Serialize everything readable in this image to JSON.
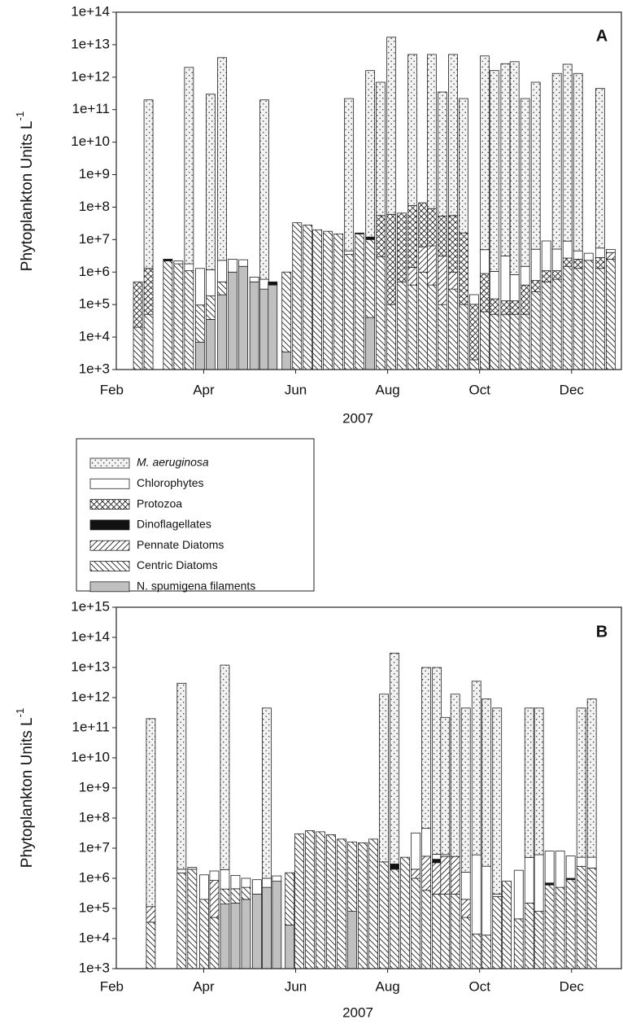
{
  "chart_data": [
    {
      "type": "bar",
      "annotation": "A",
      "y_label": "Phytoplankton Units L",
      "y_label_superscript": "-1",
      "x_label": "2007",
      "log_y": true,
      "stacked": true,
      "xlim": [
        2.1,
        13.1
      ],
      "xticks": [
        {
          "value": 2,
          "label": "Feb"
        },
        {
          "value": 4,
          "label": "Apr"
        },
        {
          "value": 6,
          "label": "Jun"
        },
        {
          "value": 8,
          "label": "Aug"
        },
        {
          "value": 10,
          "label": "Oct"
        },
        {
          "value": 12,
          "label": "Dec"
        }
      ],
      "ylim": [
        1000.0,
        100000000000000.0
      ],
      "yticks": [
        {
          "value": 1000.0,
          "label": "1e+3"
        },
        {
          "value": 10000.0,
          "label": "1e+4"
        },
        {
          "value": 100000.0,
          "label": "1e+5"
        },
        {
          "value": 1000000.0,
          "label": "1e+6"
        },
        {
          "value": 10000000.0,
          "label": "1e+7"
        },
        {
          "value": 100000000.0,
          "label": "1e+8"
        },
        {
          "value": 1000000000.0,
          "label": "1e+9"
        },
        {
          "value": 10000000000.0,
          "label": "1e+10"
        },
        {
          "value": 100000000000.0,
          "label": "1e+11"
        },
        {
          "value": 1000000000000.0,
          "label": "1e+12"
        },
        {
          "value": 10000000000000.0,
          "label": "1e+13"
        },
        {
          "value": 100000000000000.0,
          "label": "1e+14"
        }
      ],
      "x": [
        2.57,
        2.8,
        3.22,
        3.45,
        3.68,
        3.92,
        4.15,
        4.4,
        4.63,
        4.86,
        5.1,
        5.32,
        5.5,
        5.8,
        6.03,
        6.26,
        6.47,
        6.7,
        6.93,
        7.16,
        7.39,
        7.62,
        7.85,
        8.08,
        8.31,
        8.54,
        8.77,
        8.96,
        9.19,
        9.42,
        9.65,
        9.88,
        10.11,
        10.32,
        10.56,
        10.76,
        10.99,
        11.22,
        11.45,
        11.68,
        11.91,
        12.14,
        12.37,
        12.62,
        12.85
      ],
      "series": [
        {
          "name": "M. aeruginosa",
          "color": "#f2f2f2",
          "pattern": "dots",
          "values": [
            null,
            200000000000.0,
            null,
            null,
            2000000000000.0,
            null,
            300000000000.0,
            4000000000000.0,
            null,
            null,
            null,
            200000000000.0,
            null,
            null,
            null,
            null,
            null,
            null,
            null,
            220000000000.0,
            null,
            1600000000000.0,
            700000000000.0,
            17000000000000.0,
            null,
            5000000000000.0,
            null,
            5000000000000.0,
            350000000000.0,
            5000000000000.0,
            220000000000.0,
            null,
            4500000000000.0,
            1600000000000.0,
            2600000000000.0,
            3000000000000.0,
            220000000000.0,
            700000000000.0,
            null,
            1300000000000.0,
            2500000000000.0,
            1300000000000.0,
            null,
            450000000000.0,
            null
          ]
        },
        {
          "name": "Chlorophytes",
          "color": "#ffffff",
          "values": [
            null,
            null,
            null,
            400000.0,
            700000.0,
            1200000.0,
            1000000.0,
            1800000.0,
            1500000.0,
            900000.0,
            200000.0,
            300000.0,
            null,
            null,
            null,
            null,
            null,
            null,
            null,
            1000000.0,
            null,
            null,
            null,
            null,
            null,
            null,
            null,
            null,
            null,
            null,
            null,
            100000.0,
            4000000.0,
            900000.0,
            3000000.0,
            700000.0,
            1100000.0,
            4500000.0,
            8000000.0,
            4000000.0,
            6300000.0,
            2000000.0,
            1500000.0,
            2700000.0,
            1000000.0
          ]
        },
        {
          "name": "Protozoa",
          "color": "#ffffff",
          "pattern": "crosshatch",
          "values": [
            480000.0,
            1250000.0,
            null,
            null,
            null,
            null,
            null,
            null,
            null,
            null,
            null,
            null,
            null,
            null,
            null,
            null,
            null,
            null,
            null,
            null,
            null,
            null,
            52000000.0,
            60000000.0,
            65000000.0,
            110000000.0,
            130000000.0,
            84000000.0,
            50000000.0,
            54000000.0,
            16000000.0,
            100000.0,
            840000.0,
            100000.0,
            80000.0,
            80000.0,
            350000.0,
            300000.0,
            600000.0,
            500000.0,
            1200000.0,
            1200000.0,
            null,
            1500000.0,
            null
          ]
        },
        {
          "name": "Dinoflagellates",
          "color": "#111111",
          "values": [
            null,
            null,
            300000.0,
            null,
            null,
            null,
            null,
            null,
            null,
            null,
            null,
            null,
            100000.0,
            null,
            null,
            null,
            null,
            null,
            null,
            null,
            1000000.0,
            2000000.0,
            null,
            null,
            null,
            null,
            null,
            null,
            null,
            null,
            null,
            null,
            null,
            null,
            null,
            null,
            null,
            null,
            null,
            null,
            null,
            null,
            null,
            null,
            null
          ]
        },
        {
          "name": "Pennate Diatoms",
          "color": "#ffffff",
          "pattern": "diag-up",
          "values": [
            null,
            null,
            null,
            null,
            null,
            null,
            null,
            null,
            null,
            null,
            null,
            null,
            null,
            null,
            null,
            null,
            null,
            null,
            null,
            null,
            null,
            null,
            null,
            null,
            null,
            1000000.0,
            5000000.0,
            6000000.0,
            3000000.0,
            700000.0,
            null,
            null,
            null,
            null,
            null,
            null,
            null,
            null,
            null,
            null,
            null,
            null,
            null,
            null,
            1500000.0
          ]
        },
        {
          "name": "Centric Diatoms",
          "color": "#ffffff",
          "pattern": "diag-down",
          "values": [
            20000.0,
            50000.0,
            2200000.0,
            1800000.0,
            1100000.0,
            90000.0,
            150000.0,
            300000.0,
            null,
            null,
            null,
            null,
            null,
            1000000.0,
            33000000.0,
            28000000.0,
            20000000.0,
            18000000.0,
            15000000.0,
            3500000.0,
            15000000.0,
            10000000.0,
            3000000.0,
            100000.0,
            500000.0,
            400000.0,
            1000000.0,
            400000.0,
            100000.0,
            300000.0,
            100000.0,
            2000.0,
            60000.0,
            50000.0,
            50000.0,
            50000.0,
            50000.0,
            250000.0,
            500000.0,
            600000.0,
            1500000.0,
            1300000.0,
            2300000.0,
            1300000.0,
            2500000.0
          ]
        },
        {
          "name": "N. spumigena filaments",
          "color": "#c0c0c0",
          "values": [
            null,
            null,
            null,
            null,
            null,
            7000.0,
            35000.0,
            200000.0,
            1000000.0,
            1500000.0,
            500000.0,
            300000.0,
            400000.0,
            3500.0,
            null,
            null,
            null,
            null,
            null,
            null,
            null,
            40000.0,
            null,
            null,
            null,
            null,
            null,
            null,
            null,
            null,
            null,
            null,
            null,
            null,
            null,
            null,
            null,
            null,
            null,
            null,
            null,
            null,
            null,
            null,
            null
          ]
        }
      ]
    },
    {
      "type": "bar",
      "annotation": "B",
      "y_label": "Phytoplankton Units L",
      "y_label_superscript": "-1",
      "x_label": "2007",
      "log_y": true,
      "stacked": true,
      "xlim": [
        2.1,
        13.1
      ],
      "xticks": [
        {
          "value": 2,
          "label": "Feb"
        },
        {
          "value": 4,
          "label": "Apr"
        },
        {
          "value": 6,
          "label": "Jun"
        },
        {
          "value": 8,
          "label": "Aug"
        },
        {
          "value": 10,
          "label": "Oct"
        },
        {
          "value": 12,
          "label": "Dec"
        }
      ],
      "ylim": [
        1000.0,
        1000000000000000.0
      ],
      "yticks": [
        {
          "value": 1000.0,
          "label": "1e+3"
        },
        {
          "value": 10000.0,
          "label": "1e+4"
        },
        {
          "value": 100000.0,
          "label": "1e+5"
        },
        {
          "value": 1000000.0,
          "label": "1e+6"
        },
        {
          "value": 10000000.0,
          "label": "1e+7"
        },
        {
          "value": 100000000.0,
          "label": "1e+8"
        },
        {
          "value": 1000000000.0,
          "label": "1e+9"
        },
        {
          "value": 10000000000.0,
          "label": "1e+10"
        },
        {
          "value": 100000000000.0,
          "label": "1e+11"
        },
        {
          "value": 1000000000000.0,
          "label": "1e+12"
        },
        {
          "value": 10000000000000.0,
          "label": "1e+13"
        },
        {
          "value": 100000000000000.0,
          "label": "1e+14"
        },
        {
          "value": 1000000000000000.0,
          "label": "1e+15"
        }
      ],
      "x": [
        2.85,
        3.52,
        3.75,
        4.01,
        4.23,
        4.46,
        4.69,
        4.92,
        5.16,
        5.37,
        5.59,
        5.87,
        6.08,
        6.31,
        6.54,
        6.77,
        7.0,
        7.23,
        7.46,
        7.69,
        7.92,
        8.15,
        8.38,
        8.61,
        8.84,
        9.07,
        9.25,
        9.47,
        9.7,
        9.93,
        10.15,
        10.38,
        10.59,
        10.85,
        11.08,
        11.29,
        11.52,
        11.75,
        11.98,
        12.21,
        12.44
      ],
      "series": [
        {
          "color": "#f2f2f2",
          "pattern": "dots",
          "values": [
            200000000000.0,
            3000000000000.0,
            null,
            null,
            null,
            12000000000000.0,
            null,
            null,
            null,
            450000000000.0,
            null,
            null,
            null,
            null,
            null,
            null,
            null,
            null,
            null,
            null,
            1300000000000.0,
            30000000000000.0,
            null,
            null,
            10000000000000.0,
            10000000000000.0,
            220000000000.0,
            1300000000000.0,
            450000000000.0,
            3500000000000.0,
            900000000000.0,
            450000000000.0,
            null,
            null,
            450000000000.0,
            450000000000.0,
            null,
            null,
            null,
            450000000000.0,
            900000000000.0
          ]
        },
        {
          "color": "#ffffff",
          "values": [
            null,
            500000.0,
            300000.0,
            1100000.0,
            900000.0,
            1500000.0,
            800000.0,
            500000.0,
            600000.0,
            500000.0,
            400000.0,
            null,
            null,
            null,
            null,
            null,
            null,
            null,
            null,
            null,
            null,
            null,
            null,
            30000000.0,
            40000000.0,
            2000000.0,
            800000.0,
            null,
            1400000.0,
            6000000.0,
            2500000.0,
            50000.0,
            null,
            1800000.0,
            4800000.0,
            6000000.0,
            7300000.0,
            7500000.0,
            4500000.0,
            2500000.0,
            2800000.0
          ]
        },
        {
          "color": "#111111",
          "values": [
            null,
            null,
            null,
            null,
            null,
            null,
            null,
            null,
            null,
            null,
            null,
            null,
            null,
            null,
            null,
            null,
            null,
            null,
            null,
            null,
            null,
            1000000.0,
            null,
            null,
            null,
            1000000.0,
            null,
            null,
            null,
            null,
            null,
            null,
            null,
            null,
            null,
            null,
            100000.0,
            null,
            100000.0,
            null,
            null
          ]
        },
        {
          "color": "#ffffff",
          "pattern": "diag-up",
          "values": [
            80000.0,
            null,
            null,
            null,
            800000.0,
            null,
            null,
            null,
            null,
            null,
            null,
            null,
            null,
            null,
            null,
            null,
            null,
            null,
            null,
            null,
            null,
            null,
            null,
            1000000.0,
            5000000.0,
            3000000.0,
            5000000.0,
            5000000.0,
            150000.0,
            null,
            null,
            null,
            null,
            null,
            null,
            null,
            null,
            null,
            null,
            null,
            null
          ]
        },
        {
          "color": "#ffffff",
          "pattern": "diag-down",
          "values": [
            35000.0,
            1500000.0,
            2000000.0,
            200000.0,
            50000.0,
            300000.0,
            300000.0,
            300000.0,
            null,
            null,
            null,
            1500000.0,
            30000000.0,
            38000000.0,
            35000000.0,
            28000000.0,
            20000000.0,
            16000000.0,
            15000000.0,
            20000000.0,
            3500000.0,
            2000000.0,
            5000000.0,
            1000000.0,
            400000.0,
            300000.0,
            300000.0,
            300000.0,
            50000.0,
            14000.0,
            13000.0,
            250000.0,
            800000.0,
            45000.0,
            150000.0,
            80000.0,
            600000.0,
            500000.0,
            900000.0,
            2500000.0,
            2200000.0
          ]
        },
        {
          "color": "#c0c0c0",
          "values": [
            null,
            null,
            null,
            null,
            null,
            140000.0,
            150000.0,
            200000.0,
            300000.0,
            500000.0,
            800000.0,
            28000.0,
            null,
            null,
            null,
            null,
            null,
            80000.0,
            null,
            null,
            null,
            null,
            null,
            null,
            null,
            null,
            null,
            null,
            null,
            null,
            null,
            null,
            null,
            null,
            null,
            null,
            null,
            null,
            null,
            null,
            null
          ]
        }
      ]
    }
  ]
}
